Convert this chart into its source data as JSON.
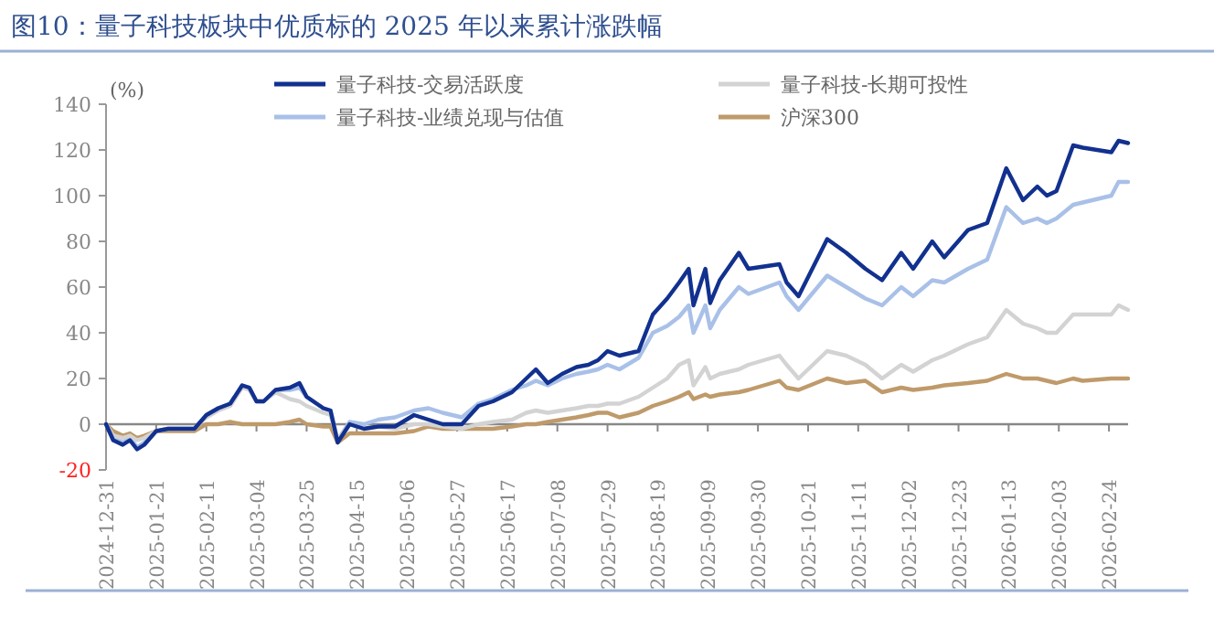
{
  "chart_data": {
    "type": "line",
    "title": "图10：量子科技板块中优质标的 2025 年以来累计涨跌幅",
    "ylabel": "(%)",
    "x": [
      "2024-12-31",
      "2025-01-03",
      "2025-01-07",
      "2025-01-10",
      "2025-01-13",
      "2025-01-16",
      "2025-01-21",
      "2025-01-26",
      "2025-02-06",
      "2025-02-11",
      "2025-02-16",
      "2025-02-21",
      "2025-02-26",
      "2025-03-01",
      "2025-03-04",
      "2025-03-07",
      "2025-03-12",
      "2025-03-18",
      "2025-03-22",
      "2025-03-25",
      "2025-04-01",
      "2025-04-04",
      "2025-04-07",
      "2025-04-12",
      "2025-04-18",
      "2025-04-24",
      "2025-05-01",
      "2025-05-09",
      "2025-05-15",
      "2025-05-21",
      "2025-05-29",
      "2025-06-05",
      "2025-06-11",
      "2025-06-19",
      "2025-06-25",
      "2025-06-29",
      "2025-07-04",
      "2025-07-10",
      "2025-07-16",
      "2025-07-21",
      "2025-07-25",
      "2025-07-29",
      "2025-08-03",
      "2025-08-11",
      "2025-08-17",
      "2025-08-23",
      "2025-08-28",
      "2025-09-01",
      "2025-09-03",
      "2025-09-08",
      "2025-09-10",
      "2025-09-14",
      "2025-09-22",
      "2025-09-26",
      "2025-10-09",
      "2025-10-12",
      "2025-10-17",
      "2025-10-29",
      "2025-11-06",
      "2025-11-14",
      "2025-11-21",
      "2025-11-29",
      "2025-12-04",
      "2025-12-12",
      "2025-12-17",
      "2025-12-27",
      "2026-01-04",
      "2026-01-12",
      "2026-01-19",
      "2026-01-25",
      "2026-01-29",
      "2026-02-02",
      "2026-02-09",
      "2026-02-13",
      "2026-02-25",
      "2026-02-28",
      "2026-03-04"
    ],
    "series": [
      {
        "name": "量子科技-交易活跃度",
        "color": "#12318f",
        "values": [
          0,
          -7,
          -9,
          -7,
          -11,
          -9,
          -3,
          -2,
          -2,
          4,
          7,
          9,
          17,
          16,
          10,
          10,
          15,
          16,
          18,
          12,
          7,
          6,
          -8,
          0,
          -2,
          -1,
          -1,
          4,
          2,
          0,
          0,
          8,
          10,
          14,
          20,
          24,
          18,
          22,
          25,
          26,
          28,
          32,
          30,
          32,
          48,
          55,
          62,
          68,
          52,
          68,
          53,
          63,
          75,
          68,
          70,
          62,
          56,
          81,
          75,
          68,
          63,
          75,
          68,
          80,
          73,
          85,
          88,
          112,
          98,
          104,
          100,
          102,
          122,
          121,
          119,
          124,
          123
        ]
      },
      {
        "name": "量子科技-长期可投性",
        "color": "#d3d3d3",
        "values": [
          0,
          -5,
          -6,
          -5,
          -7,
          -6,
          -3,
          -2,
          -2,
          3,
          6,
          8,
          16,
          15,
          10,
          10,
          14,
          11,
          10,
          8,
          5,
          4,
          -7,
          0,
          -2,
          -1,
          -2,
          0,
          0,
          -1,
          -2,
          0,
          1,
          2,
          5,
          6,
          5,
          6,
          7,
          8,
          8,
          9,
          9,
          12,
          16,
          20,
          26,
          28,
          17,
          25,
          20,
          22,
          24,
          26,
          30,
          26,
          20,
          32,
          30,
          26,
          20,
          26,
          23,
          28,
          30,
          35,
          38,
          50,
          44,
          42,
          40,
          40,
          48,
          48,
          48,
          52,
          50
        ]
      },
      {
        "name": "量子科技-业绩兑现与估值",
        "color": "#a9c0e8",
        "values": [
          0,
          -6,
          -8,
          -6,
          -10,
          -8,
          -3,
          -2,
          -2,
          4,
          7,
          9,
          17,
          16,
          10,
          10,
          15,
          15,
          16,
          12,
          7,
          6,
          -7,
          1,
          0,
          2,
          3,
          6,
          7,
          5,
          3,
          9,
          11,
          15,
          17,
          19,
          17,
          20,
          22,
          23,
          24,
          26,
          24,
          29,
          40,
          43,
          47,
          52,
          40,
          52,
          42,
          50,
          60,
          57,
          62,
          56,
          50,
          65,
          60,
          55,
          52,
          60,
          56,
          63,
          62,
          68,
          72,
          95,
          88,
          90,
          88,
          90,
          96,
          97,
          100,
          106,
          106
        ]
      },
      {
        "name": "沪深300",
        "color": "#bf9a6a",
        "values": [
          0,
          -3,
          -5,
          -4,
          -6,
          -5,
          -3,
          -3,
          -3,
          0,
          0,
          1,
          0,
          0,
          0,
          0,
          0,
          1,
          2,
          0,
          -1,
          -1,
          -8,
          -4,
          -4,
          -4,
          -4,
          -3,
          -1,
          -2,
          -2,
          -2,
          -2,
          -1,
          0,
          0,
          1,
          2,
          3,
          4,
          5,
          5,
          3,
          5,
          8,
          10,
          12,
          14,
          11,
          13,
          12,
          13,
          14,
          15,
          19,
          16,
          15,
          20,
          18,
          19,
          14,
          16,
          15,
          16,
          17,
          18,
          19,
          22,
          20,
          20,
          19,
          18,
          20,
          19,
          20,
          20,
          20
        ]
      }
    ],
    "xlim": [
      "2024-12-31",
      "2026-03-04"
    ],
    "xticks": [
      "2024-12-31",
      "2025-01-21",
      "2025-02-11",
      "2025-03-04",
      "2025-03-25",
      "2025-04-15",
      "2025-05-06",
      "2025-05-27",
      "2025-06-17",
      "2025-07-08",
      "2025-07-29",
      "2025-08-19",
      "2025-09-09",
      "2025-09-30",
      "2025-10-21",
      "2025-11-11",
      "2025-12-02",
      "2025-12-23",
      "2026-01-13",
      "2026-02-03",
      "2026-02-24"
    ],
    "ylim": [
      -20,
      140
    ],
    "yticks": [
      -20,
      0,
      20,
      40,
      60,
      80,
      100,
      120,
      140
    ],
    "legend": "top",
    "marker": "none",
    "line_style": "solid"
  }
}
